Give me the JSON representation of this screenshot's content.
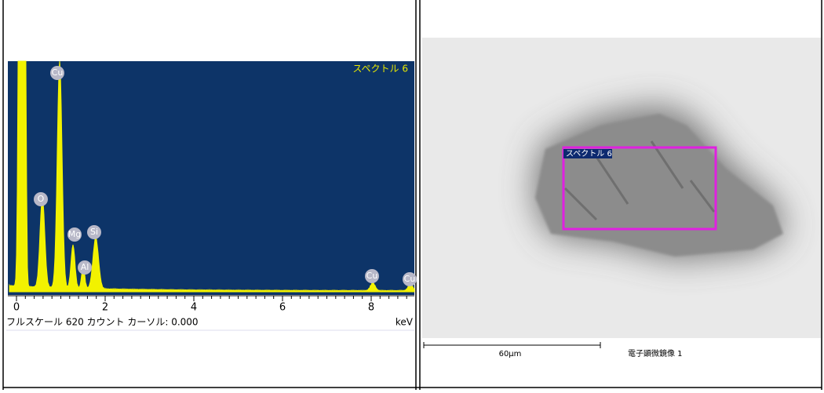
{
  "spectrum": {
    "title": "スペクトル 6",
    "peak_labels": [
      "Cu",
      "O",
      "Mg",
      "Si",
      "Al",
      "Cu",
      "Cu"
    ],
    "x_ticks": [
      "0",
      "2",
      "4",
      "6",
      "8"
    ],
    "status": "フルスケール 620 カウント カーソル: 0.000",
    "unit": "keV"
  },
  "image": {
    "region_label": "スペクトル 6",
    "scale_bar": "60µm",
    "caption": "電子顕微鏡像 1"
  }
}
